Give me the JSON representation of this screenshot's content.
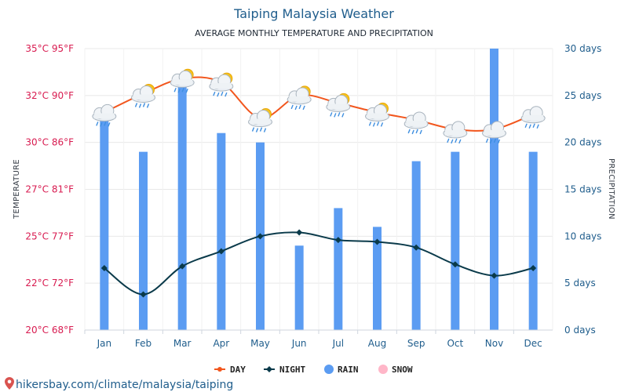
{
  "colors": {
    "day": "#f2561d",
    "night": "#0a3a4a",
    "rain": "#5b9cf2",
    "snow": "#ffb6c8",
    "grid": "#e8e8e8",
    "left_axis": "#d81b50",
    "right_axis": "#1f5d8c"
  },
  "chart_data": {
    "type": "line",
    "title": "Taiping Malaysia Weather",
    "subtitle": "AVERAGE MONTHLY TEMPERATURE AND PRECIPITATION",
    "categories": [
      "Jan",
      "Feb",
      "Mar",
      "Apr",
      "May",
      "Jun",
      "Jul",
      "Aug",
      "Sep",
      "Oct",
      "Nov",
      "Dec"
    ],
    "y_left": {
      "label": "TEMPERATURE",
      "range": [
        20,
        35
      ],
      "ticks": [
        {
          "value": 20,
          "label": "20°C 68°F"
        },
        {
          "value": 22.5,
          "label": "22°C 72°F"
        },
        {
          "value": 25,
          "label": "25°C 77°F"
        },
        {
          "value": 27.5,
          "label": "27°C 81°F"
        },
        {
          "value": 30,
          "label": "30°C 86°F"
        },
        {
          "value": 32.5,
          "label": "32°C 90°F"
        },
        {
          "value": 35,
          "label": "35°C 95°F"
        }
      ]
    },
    "y_right": {
      "label": "PRECIPITATION",
      "range": [
        0,
        30
      ],
      "ticks": [
        {
          "value": 0,
          "label": "0 days"
        },
        {
          "value": 5,
          "label": "5 days"
        },
        {
          "value": 10,
          "label": "10 days"
        },
        {
          "value": 15,
          "label": "15 days"
        },
        {
          "value": 20,
          "label": "20 days"
        },
        {
          "value": 25,
          "label": "25 days"
        },
        {
          "value": 30,
          "label": "30 days"
        }
      ]
    },
    "series": [
      {
        "name": "DAY",
        "type": "line",
        "axis": "left",
        "values": [
          31.6,
          32.6,
          33.4,
          33.2,
          31.3,
          32.5,
          32.1,
          31.6,
          31.2,
          30.7,
          30.7,
          31.5
        ]
      },
      {
        "name": "NIGHT",
        "type": "line",
        "axis": "left",
        "values": [
          23.3,
          21.9,
          23.4,
          24.2,
          25.0,
          25.2,
          24.8,
          24.7,
          24.4,
          23.5,
          22.9,
          23.3
        ]
      },
      {
        "name": "RAIN",
        "type": "bar",
        "axis": "right",
        "values": [
          23,
          19,
          27,
          21,
          20,
          9,
          13,
          11,
          18,
          19,
          30,
          19
        ]
      },
      {
        "name": "SNOW",
        "type": "bar",
        "axis": "right",
        "values": [
          0,
          0,
          0,
          0,
          0,
          0,
          0,
          0,
          0,
          0,
          0,
          0
        ]
      }
    ],
    "weather_icons": [
      "rain-icon",
      "partly-sunny-rain-icon",
      "partly-sunny-rain-icon",
      "partly-sunny-rain-icon",
      "partly-sunny-rain-icon",
      "partly-sunny-rain-icon",
      "partly-sunny-rain-icon",
      "partly-sunny-rain-icon",
      "rain-icon",
      "rain-icon",
      "rain-icon",
      "rain-icon"
    ],
    "grid": true,
    "legend_position": "bottom-center"
  },
  "footer": {
    "icon": "map-pin-icon",
    "text": "hikersbay.com/climate/malaysia/taiping"
  }
}
